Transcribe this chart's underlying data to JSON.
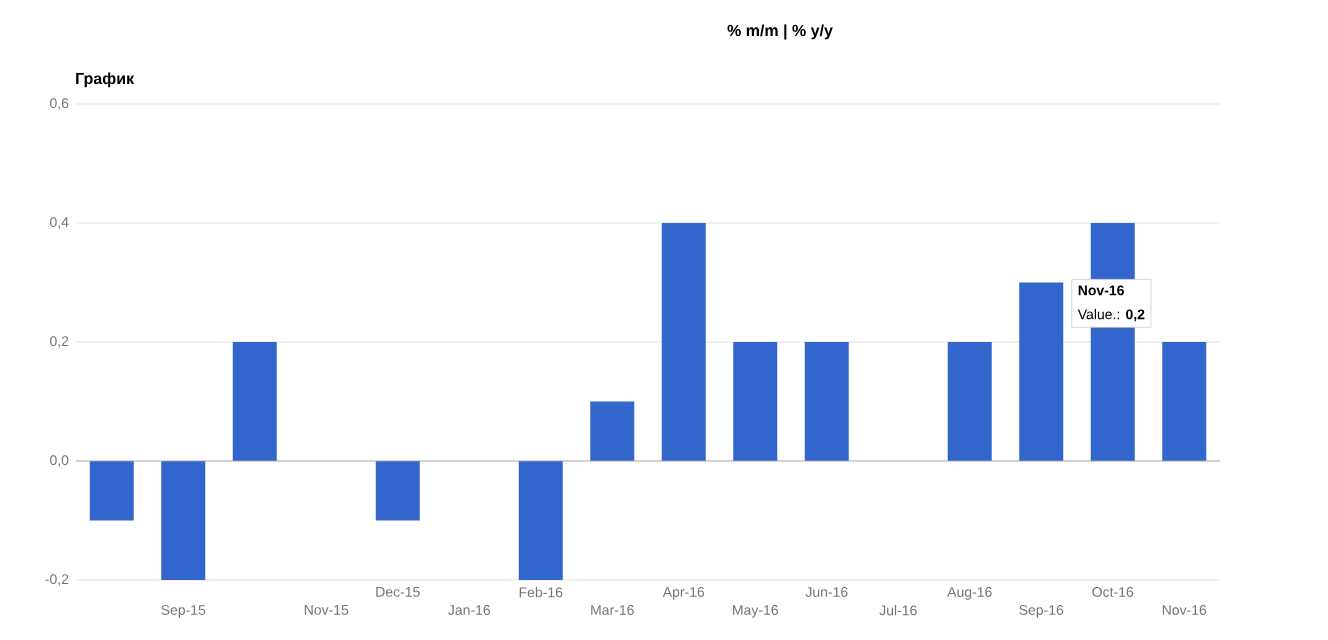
{
  "chart_data": {
    "type": "bar",
    "title": "% m/m | % y/y",
    "subtitle": "График",
    "categories": [
      null,
      "Sep-15",
      null,
      "Nov-15",
      "Dec-15",
      "Jan-16",
      "Feb-16",
      "Mar-16",
      "Apr-16",
      "May-16",
      "Jun-16",
      "Jul-16",
      "Aug-16",
      "Sep-16",
      "Oct-16",
      "Nov-16"
    ],
    "values": [
      -0.1,
      -0.2,
      0.2,
      0,
      -0.1,
      0,
      -0.2,
      0.1,
      0.4,
      0.2,
      0.2,
      0,
      0.2,
      0.3,
      0.4,
      0.2
    ],
    "color": "#3366cc",
    "ylim": [
      -0.2,
      0.6
    ],
    "yticks": [
      {
        "value": -0.2,
        "label": "-0,2"
      },
      {
        "value": 0,
        "label": "0,0"
      },
      {
        "value": 0.2,
        "label": "0,2"
      },
      {
        "value": 0.4,
        "label": "0,4"
      },
      {
        "value": 0.6,
        "label": "0,6"
      }
    ],
    "grid": "y",
    "annotations": [
      "Nov-16",
      "Value.: **0,2**"
    ]
  }
}
